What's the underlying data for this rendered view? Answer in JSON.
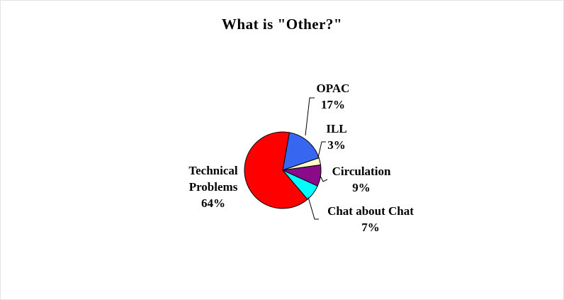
{
  "chart_data": {
    "type": "pie",
    "title": "What is \"Other?\"",
    "legend": "none",
    "grid": "off",
    "start_angle_deg": 10,
    "outline_color": "#000000",
    "background_color": "#ffffff",
    "data_label_style": "category name + percent, outside with leader lines",
    "slices": [
      {
        "label": "OPAC",
        "value": 17,
        "pct_label": "17%",
        "color": "#3766F0"
      },
      {
        "label": "ILL",
        "value": 3,
        "pct_label": "3%",
        "color": "#FFFFCC"
      },
      {
        "label": "Circulation",
        "value": 9,
        "pct_label": "9%",
        "color": "#8A0A8A"
      },
      {
        "label": "Chat about Chat",
        "value": 7,
        "pct_label": "7%",
        "color": "#00FFFF"
      },
      {
        "label": "Technical Problems",
        "value": 64,
        "pct_label": "64%",
        "color": "#FF0000"
      }
    ]
  },
  "labels": {
    "opac": "OPAC\n17%",
    "ill": "ILL\n3%",
    "circulation": "Circulation\n9%",
    "chat": "Chat about Chat\n7%",
    "technical": "Technical\nProblems\n64%"
  }
}
